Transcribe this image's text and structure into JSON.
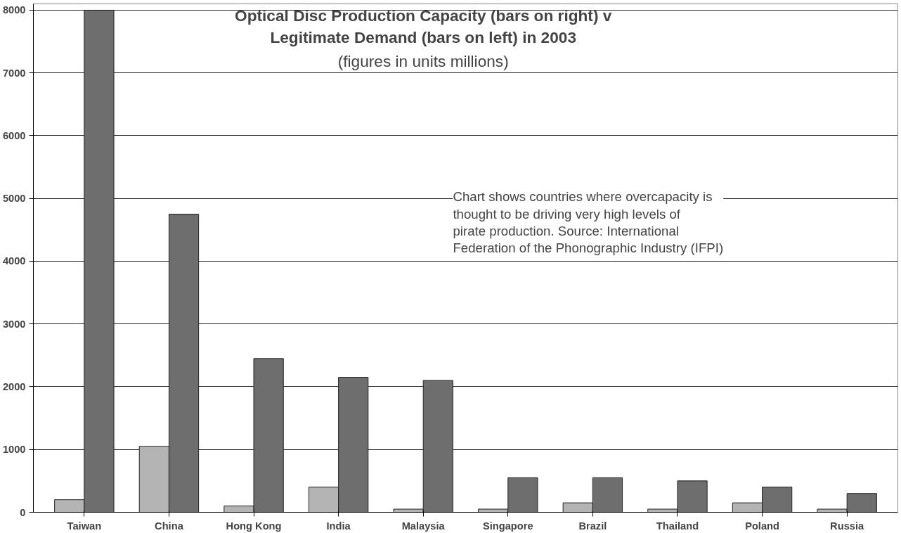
{
  "chart_data": {
    "type": "bar",
    "title": "Optical Disc Production Capacity (bars on right) v Legitimate Demand (bars on left) in 2003",
    "subtitle": "(figures in units millions)",
    "categories": [
      "Taiwan",
      "China",
      "Hong Kong",
      "India",
      "Malaysia",
      "Singapore",
      "Brazil",
      "Thailand",
      "Poland",
      "Russia"
    ],
    "series": [
      {
        "color": "#b4b4b4",
        "values": [
          200,
          1050,
          100,
          400,
          50,
          50,
          150,
          50,
          150,
          50
        ]
      },
      {
        "color": "#6e6e6e",
        "values": [
          8000,
          4750,
          2450,
          2150,
          2100,
          550,
          550,
          500,
          400,
          300
        ]
      }
    ],
    "ylim": [
      0,
      8100
    ],
    "yticks": [
      0,
      1000,
      2000,
      3000,
      4000,
      5000,
      6000,
      7000,
      8000
    ],
    "grid": "y",
    "annotations": [
      "Chart shows countries where overcapacity is thought to be driving very high levels of pirate production. Source: International Federation of the Phonographic Industry (IFPI)"
    ]
  }
}
